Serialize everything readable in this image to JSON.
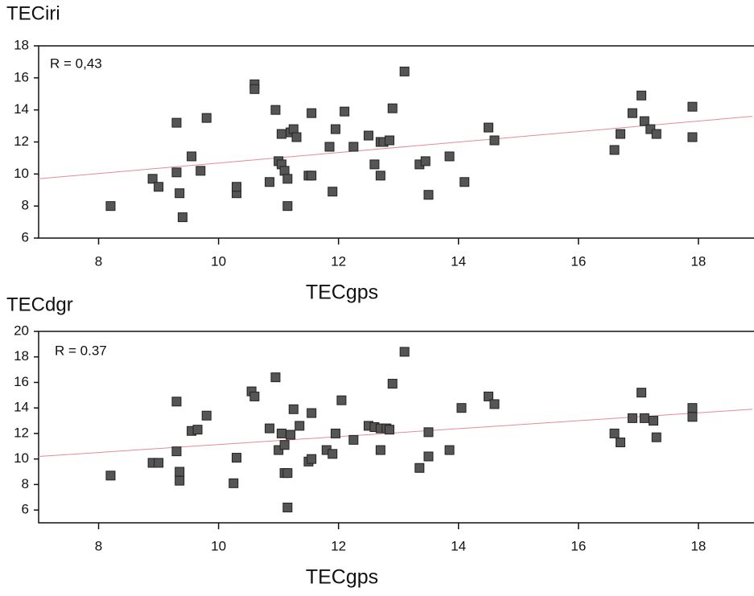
{
  "chart_data": [
    {
      "type": "scatter",
      "title": "TECiri",
      "xlabel": "TECgps",
      "annotation": "R  = 0,43",
      "xlim": [
        7,
        18.9
      ],
      "ylim": [
        6,
        18
      ],
      "xticks": [
        8,
        10,
        12,
        14,
        16,
        18
      ],
      "yticks": [
        6,
        8,
        10,
        12,
        14,
        16,
        18
      ],
      "color": "#555555",
      "x": [
        8.2,
        8.9,
        9.0,
        9.3,
        9.3,
        9.35,
        9.4,
        9.55,
        9.7,
        9.8,
        10.3,
        10.3,
        10.6,
        10.6,
        10.85,
        10.95,
        11.0,
        11.05,
        11.05,
        11.1,
        11.15,
        11.15,
        11.2,
        11.25,
        11.3,
        11.5,
        11.55,
        11.55,
        11.85,
        11.9,
        11.95,
        12.1,
        12.25,
        12.5,
        12.6,
        12.7,
        12.7,
        12.75,
        12.85,
        12.9,
        13.1,
        13.35,
        13.45,
        13.5,
        13.85,
        14.1,
        14.5,
        14.6,
        16.6,
        16.7,
        16.9,
        17.05,
        17.1,
        17.2,
        17.3,
        17.9,
        17.9
      ],
      "values": [
        8.0,
        9.7,
        9.2,
        10.1,
        13.2,
        8.8,
        7.3,
        11.1,
        10.2,
        13.5,
        8.8,
        9.2,
        15.6,
        15.3,
        9.5,
        14.0,
        10.8,
        12.5,
        10.6,
        10.2,
        9.7,
        8.0,
        12.6,
        12.8,
        12.3,
        9.9,
        13.8,
        9.9,
        11.7,
        8.9,
        12.8,
        13.9,
        11.7,
        12.4,
        10.6,
        12.0,
        9.9,
        12.0,
        12.1,
        14.1,
        16.4,
        10.6,
        10.8,
        8.7,
        11.1,
        9.5,
        12.9,
        12.1,
        11.5,
        12.5,
        13.8,
        14.9,
        13.3,
        12.8,
        12.5,
        14.2,
        12.3
      ],
      "trend_line": {
        "x": [
          7,
          18.9
        ],
        "values": [
          9.7,
          13.6
        ],
        "color": "#e48a98"
      }
    },
    {
      "type": "scatter",
      "title": "TECdgr",
      "xlabel": "TECgps",
      "annotation": "R  = 0.37",
      "xlim": [
        7,
        18.9
      ],
      "ylim": [
        5,
        20
      ],
      "xticks": [
        8,
        10,
        12,
        14,
        16,
        18
      ],
      "yticks": [
        6,
        8,
        10,
        12,
        14,
        16,
        18,
        20
      ],
      "color": "#555555",
      "x": [
        8.2,
        8.9,
        9.0,
        9.3,
        9.3,
        9.35,
        9.35,
        9.55,
        9.65,
        9.8,
        10.25,
        10.3,
        10.55,
        10.6,
        10.85,
        10.95,
        11.0,
        11.05,
        11.1,
        11.1,
        11.15,
        11.15,
        11.2,
        11.25,
        11.35,
        11.5,
        11.55,
        11.55,
        11.8,
        11.9,
        11.95,
        12.05,
        12.25,
        12.5,
        12.6,
        12.7,
        12.8,
        12.85,
        12.7,
        12.9,
        13.1,
        13.35,
        13.5,
        13.5,
        13.85,
        14.05,
        14.5,
        14.6,
        16.6,
        16.7,
        16.9,
        17.05,
        17.1,
        17.25,
        17.3,
        17.9,
        17.9
      ],
      "values": [
        8.7,
        9.7,
        9.7,
        10.6,
        14.5,
        9.0,
        8.3,
        12.2,
        12.3,
        13.4,
        8.1,
        10.1,
        15.3,
        14.9,
        12.4,
        16.4,
        10.7,
        12.0,
        8.9,
        11.1,
        8.9,
        6.2,
        11.9,
        13.9,
        12.6,
        9.8,
        10.0,
        13.6,
        10.7,
        10.4,
        12.0,
        14.6,
        11.5,
        12.6,
        12.5,
        12.4,
        12.4,
        12.3,
        10.7,
        15.9,
        18.4,
        9.3,
        10.2,
        12.1,
        10.7,
        14.0,
        14.9,
        14.3,
        12.0,
        11.3,
        13.2,
        15.2,
        13.2,
        13.0,
        11.7,
        14.0,
        13.3
      ],
      "trend_line": {
        "x": [
          7,
          18.9
        ],
        "values": [
          10.2,
          13.9
        ],
        "color": "#e48a98"
      }
    }
  ]
}
